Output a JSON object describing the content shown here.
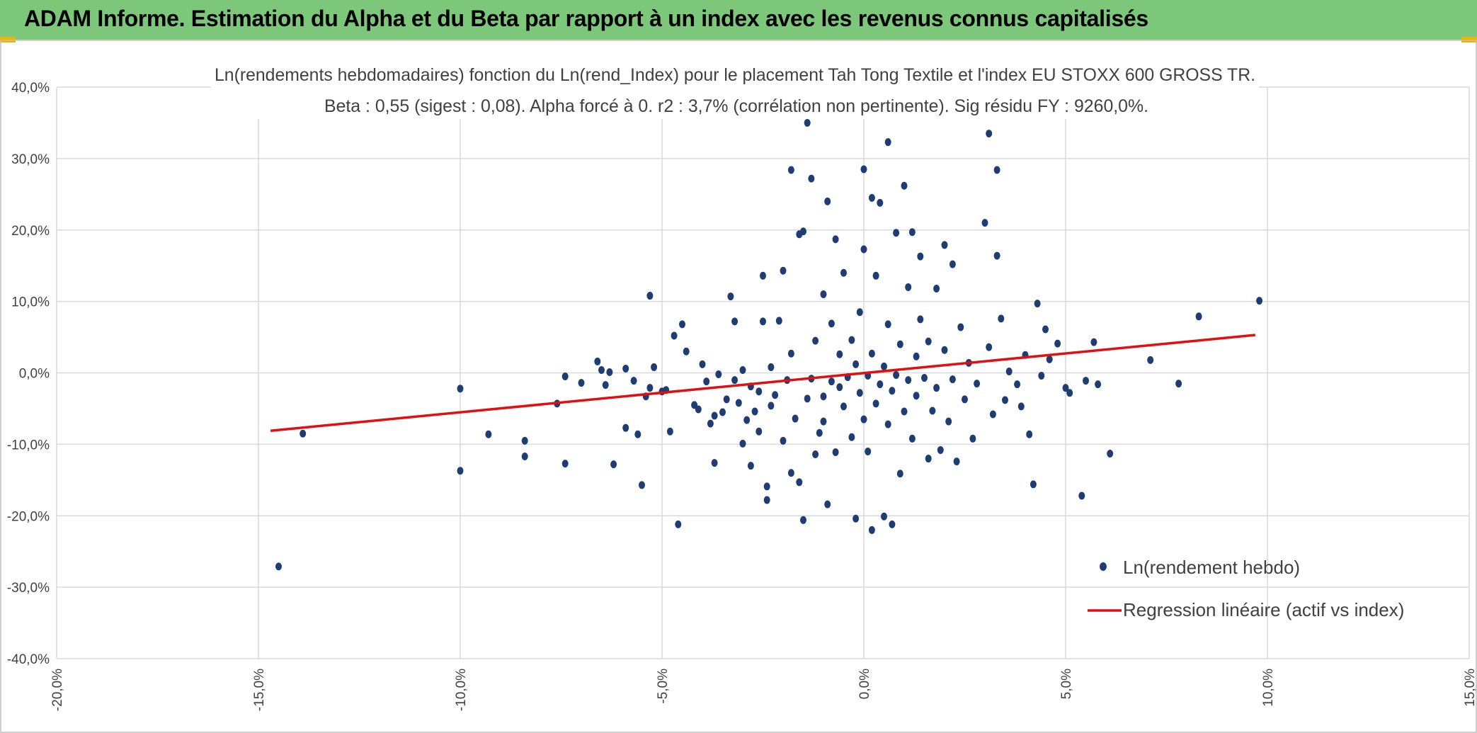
{
  "banner": {
    "title": "ADAM Informe. Estimation du Alpha et du Beta par rapport à un index avec les revenus connus capitalisés",
    "color": "#7dc77b"
  },
  "chart_data": {
    "type": "scatter",
    "title": "Ln(rendements hebdomadaires) fonction du Ln(rend_Index) pour le placement Tah Tong Textile  et l'index EU STOXX 600 GROSS TR.",
    "subtitle": "Beta : 0,55 (sigest : 0,08). Alpha forcé à 0. r2 : 3,7% (corrélation non pertinente). Sig résidu FY : 9260,0%.",
    "xlabel": "",
    "ylabel": "",
    "xlim": [
      -20,
      15
    ],
    "ylim": [
      -40,
      40
    ],
    "x_ticks": [
      {
        "v": -20,
        "label": "-20,0%"
      },
      {
        "v": -15,
        "label": "-15,0%"
      },
      {
        "v": -10,
        "label": "-10,0%"
      },
      {
        "v": -5,
        "label": "-5,0%"
      },
      {
        "v": 0,
        "label": "0,0%"
      },
      {
        "v": 5,
        "label": "5,0%"
      },
      {
        "v": 10,
        "label": "10,0%"
      },
      {
        "v": 15,
        "label": "15,0%"
      }
    ],
    "y_ticks": [
      {
        "v": 40,
        "label": "40,0%"
      },
      {
        "v": 30,
        "label": "30,0%"
      },
      {
        "v": 20,
        "label": "20,0%"
      },
      {
        "v": 10,
        "label": "10,0%"
      },
      {
        "v": 0,
        "label": "0,0%"
      },
      {
        "v": -10,
        "label": "-10,0%"
      },
      {
        "v": -20,
        "label": "-20,0%"
      },
      {
        "v": -30,
        "label": "-30,0%"
      },
      {
        "v": -40,
        "label": "-40,0%"
      }
    ],
    "grid": true,
    "legend_position": "bottom-right",
    "series": [
      {
        "name": "Ln(rendement hebdo)",
        "kind": "scatter",
        "color": "#1f3d73",
        "points": [
          [
            -14.5,
            -27.1
          ],
          [
            -13.9,
            -8.5
          ],
          [
            -10.0,
            -2.2
          ],
          [
            -10.0,
            -13.7
          ],
          [
            -9.3,
            -8.6
          ],
          [
            -8.4,
            -9.5
          ],
          [
            -8.4,
            -11.7
          ],
          [
            -7.6,
            -4.3
          ],
          [
            -7.4,
            -0.5
          ],
          [
            -7.4,
            -12.7
          ],
          [
            -7.0,
            -1.4
          ],
          [
            -6.6,
            1.6
          ],
          [
            -6.5,
            0.4
          ],
          [
            -6.4,
            -1.7
          ],
          [
            -6.3,
            0.1
          ],
          [
            -6.2,
            -12.8
          ],
          [
            -5.9,
            -7.7
          ],
          [
            -5.9,
            0.6
          ],
          [
            -5.7,
            -1.1
          ],
          [
            -5.6,
            -8.6
          ],
          [
            -5.5,
            -15.7
          ],
          [
            -5.4,
            -3.3
          ],
          [
            -5.3,
            10.8
          ],
          [
            -5.3,
            -2.1
          ],
          [
            -5.2,
            0.8
          ],
          [
            -5.0,
            -2.6
          ],
          [
            -4.9,
            -2.4
          ],
          [
            -4.8,
            -8.2
          ],
          [
            -4.7,
            5.2
          ],
          [
            -4.6,
            -21.2
          ],
          [
            -4.5,
            6.8
          ],
          [
            -4.4,
            3.0
          ],
          [
            -4.2,
            -4.5
          ],
          [
            -4.1,
            -5.1
          ],
          [
            -4.0,
            1.2
          ],
          [
            -3.9,
            -1.2
          ],
          [
            -3.8,
            -7.1
          ],
          [
            -3.7,
            -12.6
          ],
          [
            -3.7,
            -6.0
          ],
          [
            -3.6,
            -0.2
          ],
          [
            -3.5,
            -5.5
          ],
          [
            -3.4,
            -3.7
          ],
          [
            -3.3,
            10.7
          ],
          [
            -3.2,
            7.2
          ],
          [
            -3.2,
            -1.0
          ],
          [
            -3.1,
            -4.2
          ],
          [
            -3.0,
            -9.9
          ],
          [
            -3.0,
            0.4
          ],
          [
            -2.9,
            -6.6
          ],
          [
            -2.8,
            -1.9
          ],
          [
            -2.8,
            -13.0
          ],
          [
            -2.7,
            -5.4
          ],
          [
            -2.6,
            -2.6
          ],
          [
            -2.6,
            -8.2
          ],
          [
            -2.5,
            13.6
          ],
          [
            -2.5,
            7.2
          ],
          [
            -2.4,
            -15.9
          ],
          [
            -2.4,
            -17.8
          ],
          [
            -2.3,
            -4.6
          ],
          [
            -2.3,
            0.8
          ],
          [
            -2.2,
            -3.1
          ],
          [
            -2.1,
            7.3
          ],
          [
            -2.0,
            14.3
          ],
          [
            -2.0,
            -9.5
          ],
          [
            -1.9,
            -1.0
          ],
          [
            -1.8,
            28.4
          ],
          [
            -1.8,
            -14.0
          ],
          [
            -1.8,
            2.7
          ],
          [
            -1.7,
            -6.4
          ],
          [
            -1.6,
            -15.3
          ],
          [
            -1.6,
            19.4
          ],
          [
            -1.5,
            19.8
          ],
          [
            -1.5,
            -20.6
          ],
          [
            -1.4,
            -3.6
          ],
          [
            -1.4,
            35.0
          ],
          [
            -1.3,
            -0.8
          ],
          [
            -1.3,
            27.2
          ],
          [
            -1.2,
            4.5
          ],
          [
            -1.2,
            -11.4
          ],
          [
            -1.1,
            -8.4
          ],
          [
            -1.0,
            -3.3
          ],
          [
            -1.0,
            11.0
          ],
          [
            -1.0,
            -6.8
          ],
          [
            -0.9,
            -18.4
          ],
          [
            -0.9,
            24.0
          ],
          [
            -0.8,
            6.9
          ],
          [
            -0.8,
            -1.2
          ],
          [
            -0.7,
            18.7
          ],
          [
            -0.7,
            -11.1
          ],
          [
            -0.6,
            2.6
          ],
          [
            -0.6,
            -2.0
          ],
          [
            -0.5,
            -4.7
          ],
          [
            -0.5,
            14.0
          ],
          [
            -0.4,
            -0.6
          ],
          [
            -0.3,
            -9.0
          ],
          [
            -0.3,
            4.6
          ],
          [
            -0.2,
            -20.4
          ],
          [
            -0.2,
            1.2
          ],
          [
            -0.1,
            -2.8
          ],
          [
            -0.1,
            8.5
          ],
          [
            0.0,
            -6.5
          ],
          [
            0.0,
            28.5
          ],
          [
            0.0,
            17.3
          ],
          [
            0.1,
            -0.4
          ],
          [
            0.1,
            -11.0
          ],
          [
            0.2,
            -22.0
          ],
          [
            0.2,
            2.7
          ],
          [
            0.2,
            24.5
          ],
          [
            0.3,
            -4.3
          ],
          [
            0.3,
            13.6
          ],
          [
            0.4,
            -1.6
          ],
          [
            0.4,
            23.8
          ],
          [
            0.5,
            -20.1
          ],
          [
            0.5,
            0.9
          ],
          [
            0.6,
            -7.2
          ],
          [
            0.6,
            6.8
          ],
          [
            0.6,
            32.3
          ],
          [
            0.7,
            -2.5
          ],
          [
            0.7,
            -21.2
          ],
          [
            0.8,
            19.6
          ],
          [
            0.8,
            -0.3
          ],
          [
            0.9,
            -14.1
          ],
          [
            0.9,
            4.0
          ],
          [
            1.0,
            26.2
          ],
          [
            1.0,
            -5.4
          ],
          [
            1.1,
            12.0
          ],
          [
            1.1,
            -1.0
          ],
          [
            1.2,
            19.7
          ],
          [
            1.2,
            -9.2
          ],
          [
            1.3,
            2.3
          ],
          [
            1.3,
            -3.2
          ],
          [
            1.4,
            16.3
          ],
          [
            1.4,
            7.5
          ],
          [
            1.5,
            -0.7
          ],
          [
            1.6,
            -12.0
          ],
          [
            1.6,
            4.4
          ],
          [
            1.7,
            -5.3
          ],
          [
            1.8,
            11.8
          ],
          [
            1.8,
            -2.1
          ],
          [
            1.9,
            -10.8
          ],
          [
            2.0,
            17.9
          ],
          [
            2.0,
            3.2
          ],
          [
            2.1,
            -6.8
          ],
          [
            2.2,
            -0.9
          ],
          [
            2.2,
            15.2
          ],
          [
            2.3,
            -12.4
          ],
          [
            2.4,
            6.4
          ],
          [
            2.5,
            -3.7
          ],
          [
            2.6,
            1.4
          ],
          [
            2.7,
            -9.2
          ],
          [
            2.8,
            -1.5
          ],
          [
            3.0,
            21.0
          ],
          [
            3.1,
            33.5
          ],
          [
            3.1,
            3.6
          ],
          [
            3.2,
            -5.8
          ],
          [
            3.3,
            28.4
          ],
          [
            3.3,
            16.4
          ],
          [
            3.4,
            7.6
          ],
          [
            3.5,
            -3.8
          ],
          [
            3.6,
            0.2
          ],
          [
            3.8,
            -1.6
          ],
          [
            3.9,
            -4.7
          ],
          [
            4.0,
            2.5
          ],
          [
            4.1,
            -8.6
          ],
          [
            4.2,
            -15.6
          ],
          [
            4.3,
            9.7
          ],
          [
            4.4,
            -0.4
          ],
          [
            4.5,
            6.1
          ],
          [
            4.6,
            1.9
          ],
          [
            4.8,
            4.1
          ],
          [
            5.0,
            -2.1
          ],
          [
            5.1,
            -2.8
          ],
          [
            5.4,
            -17.2
          ],
          [
            5.5,
            -1.1
          ],
          [
            5.7,
            4.3
          ],
          [
            5.8,
            -1.6
          ],
          [
            6.1,
            -11.3
          ],
          [
            7.1,
            1.8
          ],
          [
            7.8,
            -1.5
          ],
          [
            8.3,
            7.9
          ],
          [
            9.8,
            10.1
          ]
        ]
      },
      {
        "name": "Regression linéaire (actif vs index)",
        "kind": "line",
        "color": "#e01010",
        "x": [
          -14.7,
          9.7
        ],
        "y": [
          -8.1,
          5.3
        ]
      }
    ]
  }
}
